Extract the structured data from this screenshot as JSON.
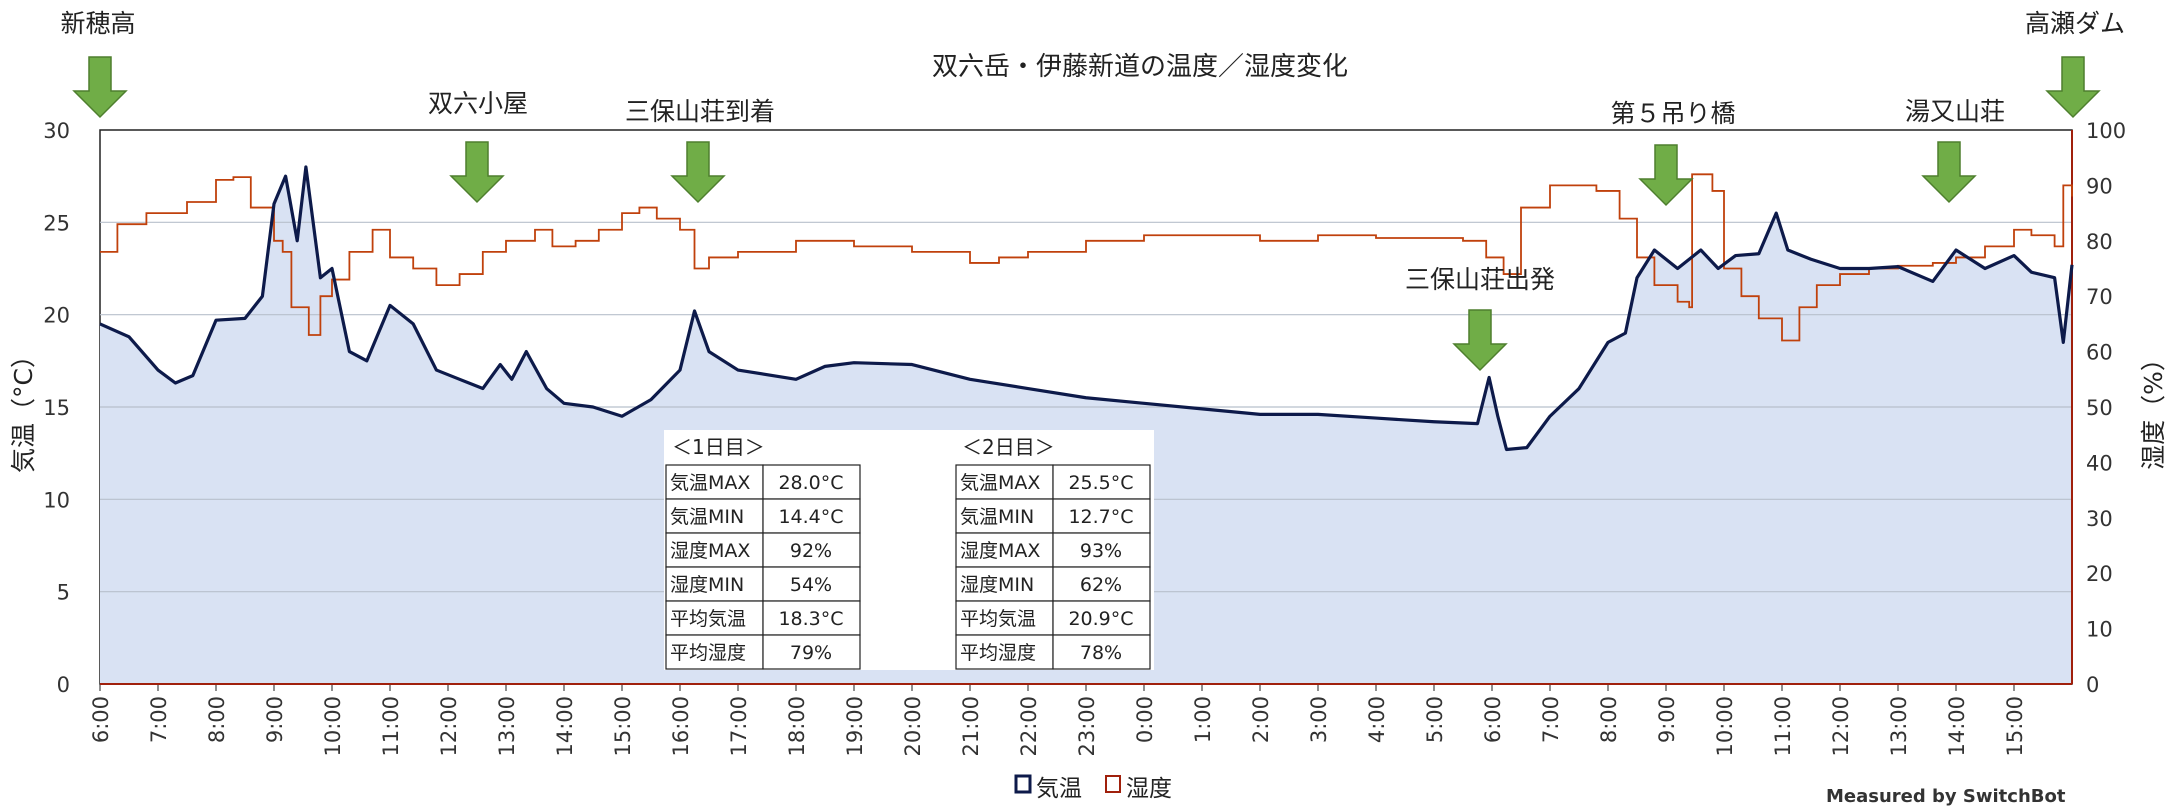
{
  "chart_data": {
    "type": "line",
    "title": "双六岳・伊藤新道の温度／湿度変化",
    "xlabel": "",
    "ylabel": "気温（°C）",
    "y2label": "湿度（%）",
    "ylim": [
      0,
      30
    ],
    "y2lim": [
      0,
      100
    ],
    "yticks": [
      "0",
      "5",
      "10",
      "15",
      "20",
      "25",
      "30"
    ],
    "y2ticks": [
      "0",
      "10",
      "20",
      "30",
      "40",
      "50",
      "60",
      "70",
      "80",
      "90",
      "100"
    ],
    "xlim_hours_from_start": [
      0,
      34
    ],
    "xticks": [
      "6:00",
      "7:00",
      "8:00",
      "9:00",
      "10:00",
      "11:00",
      "12:00",
      "13:00",
      "14:00",
      "15:00",
      "16:00",
      "17:00",
      "18:00",
      "19:00",
      "20:00",
      "21:00",
      "22:00",
      "23:00",
      "0:00",
      "1:00",
      "2:00",
      "3:00",
      "4:00",
      "5:00",
      "6:00",
      "7:00",
      "8:00",
      "9:00",
      "10:00",
      "11:00",
      "12:00",
      "13:00",
      "14:00",
      "15:00"
    ],
    "grid": true,
    "legend": [
      "気温",
      "湿度"
    ],
    "legend_position": "bottom",
    "series": [
      {
        "name": "気温",
        "axis": "left",
        "color": "#0d1a4a",
        "fill": "#d9e2f3",
        "x": [
          0,
          0.5,
          1,
          1.3,
          1.6,
          2,
          2.5,
          2.8,
          3,
          3.2,
          3.4,
          3.55,
          3.8,
          4,
          4.3,
          4.6,
          5,
          5.4,
          5.8,
          6.2,
          6.6,
          6.9,
          7.1,
          7.35,
          7.7,
          8,
          8.5,
          9,
          9.5,
          10,
          10.25,
          10.5,
          11,
          12,
          12.5,
          13,
          14,
          15,
          16,
          17,
          18,
          19,
          20,
          21,
          22,
          23,
          23.75,
          23.95,
          24.1,
          24.25,
          24.6,
          25,
          25.5,
          26,
          26.3,
          26.5,
          26.8,
          27.2,
          27.6,
          27.9,
          28.2,
          28.6,
          28.9,
          29.1,
          29.5,
          30,
          30.5,
          31,
          31.6,
          32,
          32.5,
          33,
          33.3,
          33.7,
          33.85,
          34
        ],
        "values": [
          19.5,
          18.8,
          17,
          16.3,
          16.7,
          19.7,
          19.8,
          21,
          26,
          27.5,
          24,
          28,
          22,
          22.5,
          18,
          17.5,
          20.5,
          19.5,
          17,
          16.5,
          16,
          17.3,
          16.5,
          18,
          16,
          15.2,
          15,
          14.5,
          15.4,
          17,
          20.2,
          18,
          17,
          16.5,
          17.2,
          17.4,
          17.3,
          16.5,
          16,
          15.5,
          15.2,
          14.9,
          14.6,
          14.6,
          14.4,
          14.2,
          14.1,
          16.6,
          14.5,
          12.7,
          12.8,
          14.5,
          16,
          18.5,
          19,
          22,
          23.5,
          22.5,
          23.5,
          22.5,
          23.2,
          23.3,
          25.5,
          23.5,
          23,
          22.5,
          22.5,
          22.6,
          21.8,
          23.5,
          22.5,
          23.2,
          22.3,
          22,
          18.5,
          22.7
        ]
      },
      {
        "name": "湿度",
        "axis": "right",
        "color": "#c0410c",
        "x": [
          0,
          0.3,
          0.8,
          1.5,
          2,
          2.3,
          2.6,
          3,
          3.15,
          3.3,
          3.6,
          3.8,
          4,
          4.3,
          4.7,
          5,
          5.4,
          5.8,
          6.2,
          6.6,
          7,
          7.5,
          7.8,
          8.2,
          8.6,
          9,
          9.3,
          9.6,
          10,
          10.25,
          10.5,
          11,
          12,
          13,
          14,
          14.5,
          15,
          15.5,
          16,
          17,
          18,
          19,
          20,
          21,
          22,
          23.5,
          23.9,
          24.2,
          24.5,
          25,
          25.8,
          26.2,
          26.5,
          26.8,
          27.2,
          27.4,
          27.45,
          27.8,
          28,
          28.3,
          28.6,
          29,
          29.3,
          29.6,
          30,
          30.5,
          31,
          31.6,
          32,
          32.5,
          33,
          33.3,
          33.7,
          33.85,
          34
        ],
        "values": [
          78,
          83,
          85,
          87,
          91,
          91.5,
          86,
          80,
          78,
          68,
          63,
          70,
          73,
          78,
          82,
          77,
          75,
          72,
          74,
          78,
          80,
          82,
          79,
          80,
          82,
          85,
          86,
          84,
          82,
          75,
          77,
          78,
          80,
          79,
          78,
          78,
          76,
          77,
          78,
          80,
          81,
          81,
          80,
          81,
          80.5,
          80,
          77,
          74,
          86,
          90,
          89,
          84,
          77,
          72,
          69,
          68,
          92,
          89,
          75,
          70,
          66,
          62,
          68,
          72,
          74,
          75,
          75.5,
          76,
          77,
          79,
          82,
          81,
          79,
          90,
          88
        ]
      }
    ],
    "annotations": [
      {
        "label": "新穂高",
        "time": "6:00"
      },
      {
        "label": "双六小屋",
        "time": "12:30"
      },
      {
        "label": "三保山荘到着",
        "time": "16:20"
      },
      {
        "label": "三保山荘出発",
        "time": "5:50"
      },
      {
        "label": "第５吊り橋",
        "time": "9:00"
      },
      {
        "label": "湯又山荘",
        "time": "13:50"
      },
      {
        "label": "高瀬ダム",
        "time": "16:00"
      }
    ],
    "tables": [
      {
        "title": "＜1日目＞",
        "rows": [
          [
            "気温MAX",
            "28.0°C"
          ],
          [
            "気温MIN",
            "14.4°C"
          ],
          [
            "湿度MAX",
            "92%"
          ],
          [
            "湿度MIN",
            "54%"
          ],
          [
            "平均気温",
            "18.3°C"
          ],
          [
            "平均湿度",
            "79%"
          ]
        ]
      },
      {
        "title": "＜2日目＞",
        "rows": [
          [
            "気温MAX",
            "25.5°C"
          ],
          [
            "気温MIN",
            "12.7°C"
          ],
          [
            "湿度MAX",
            "93%"
          ],
          [
            "湿度MIN",
            "62%"
          ],
          [
            "平均気温",
            "20.9°C"
          ],
          [
            "平均湿度",
            "78%"
          ]
        ]
      }
    ],
    "credit": "Measured by SwitchBot",
    "arrow_color": "#70ad47"
  }
}
